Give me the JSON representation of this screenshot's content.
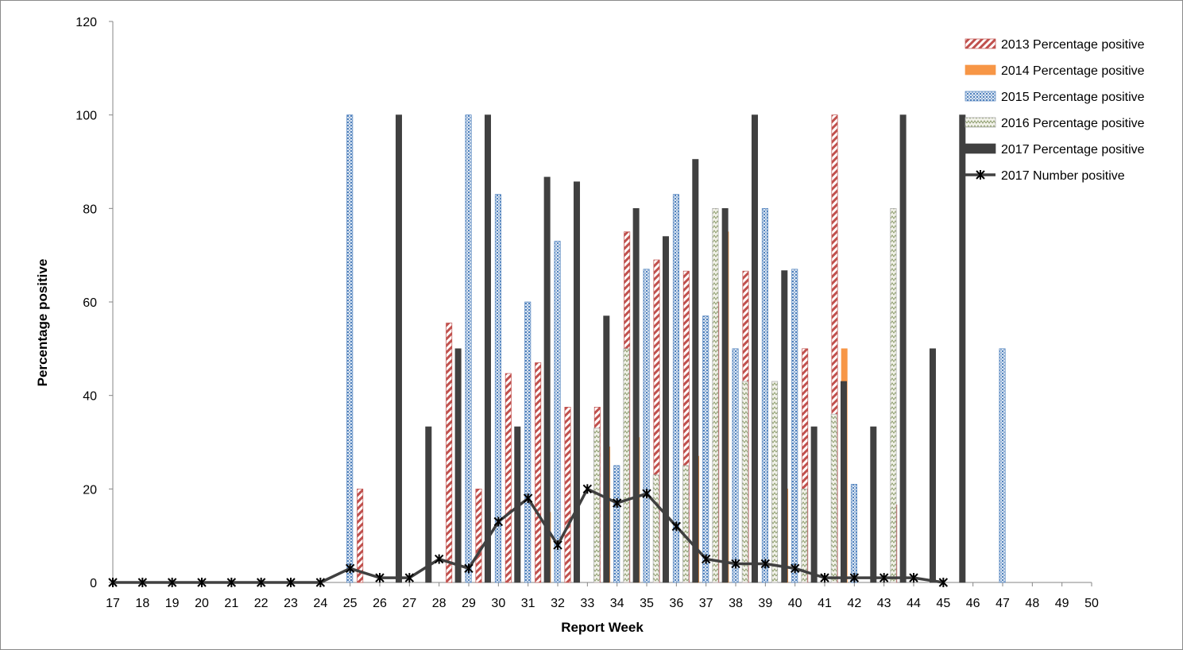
{
  "chart_data": {
    "type": "bar",
    "title": "",
    "xlabel": "Report Week",
    "ylabel": "Percentage positive",
    "ylim": [
      0,
      120
    ],
    "yticks": [
      0,
      20,
      40,
      60,
      80,
      100,
      120
    ],
    "grid": false,
    "legend_position": "top-right",
    "categories": [
      "17",
      "18",
      "19",
      "20",
      "21",
      "22",
      "23",
      "24",
      "25",
      "26",
      "27",
      "28",
      "29",
      "30",
      "31",
      "32",
      "33",
      "34",
      "35",
      "36",
      "37",
      "38",
      "39",
      "40",
      "41",
      "42",
      "43",
      "44",
      "45",
      "46",
      "47",
      "48",
      "49",
      "50"
    ],
    "series": [
      {
        "name": "2013 Percentage positive",
        "kind": "bar",
        "pattern": "red-diagonal",
        "color": "#c0504d",
        "values": [
          null,
          null,
          null,
          null,
          null,
          null,
          null,
          null,
          20,
          null,
          null,
          55.5,
          20,
          44.7,
          47,
          37.5,
          37.5,
          75,
          69,
          66.6,
          60,
          66.6,
          null,
          50,
          100,
          null,
          16.6,
          null,
          null,
          null,
          null,
          null,
          null,
          null
        ]
      },
      {
        "name": "2014 Percentage positive",
        "kind": "bar",
        "pattern": "solid-orange",
        "color": "#f79646",
        "values": [
          null,
          null,
          null,
          null,
          null,
          null,
          null,
          null,
          null,
          null,
          null,
          null,
          null,
          null,
          15,
          null,
          29,
          31,
          null,
          27,
          75,
          null,
          20,
          null,
          50,
          null,
          null,
          null,
          null,
          null,
          null,
          null,
          null,
          null
        ]
      },
      {
        "name": "2015 Percentage positive",
        "kind": "bar",
        "pattern": "blue-dots",
        "color": "#4f81bd",
        "values": [
          null,
          null,
          null,
          null,
          null,
          null,
          null,
          100,
          null,
          null,
          null,
          100,
          83,
          60,
          73,
          null,
          25,
          67,
          83,
          57,
          50,
          80,
          67,
          null,
          21,
          null,
          null,
          null,
          null,
          50,
          null,
          null,
          null,
          null
        ]
      },
      {
        "name": "2016 Percentage positive",
        "kind": "bar",
        "pattern": "green-zigzag",
        "color": "#9bbb59",
        "values": [
          null,
          null,
          null,
          null,
          null,
          null,
          null,
          null,
          null,
          null,
          null,
          null,
          null,
          null,
          null,
          33,
          50,
          23,
          25,
          80,
          43,
          43,
          20,
          36,
          null,
          80,
          null,
          null,
          null,
          null,
          null,
          null,
          null,
          null
        ]
      },
      {
        "name": "2017 Percentage positive",
        "kind": "bar",
        "pattern": "solid-dark",
        "color": "#404040",
        "values": [
          null,
          null,
          null,
          null,
          null,
          null,
          null,
          null,
          100,
          33.3,
          50,
          100,
          33.3,
          86.7,
          85.7,
          57,
          80,
          74,
          90.5,
          80,
          100,
          66.7,
          33.3,
          43,
          33.3,
          100,
          50,
          100,
          null,
          null,
          null,
          null,
          null,
          null
        ]
      },
      {
        "name": "2017 Number positive",
        "kind": "line",
        "marker": "asterisk",
        "color": "#404040",
        "values": [
          0,
          0,
          0,
          0,
          0,
          0,
          0,
          0,
          3,
          1,
          1,
          5,
          3,
          13,
          18,
          8,
          20,
          17,
          19,
          12,
          5,
          4,
          4,
          3,
          1,
          1,
          1,
          1,
          0,
          null,
          null,
          null,
          null,
          null
        ]
      }
    ]
  }
}
